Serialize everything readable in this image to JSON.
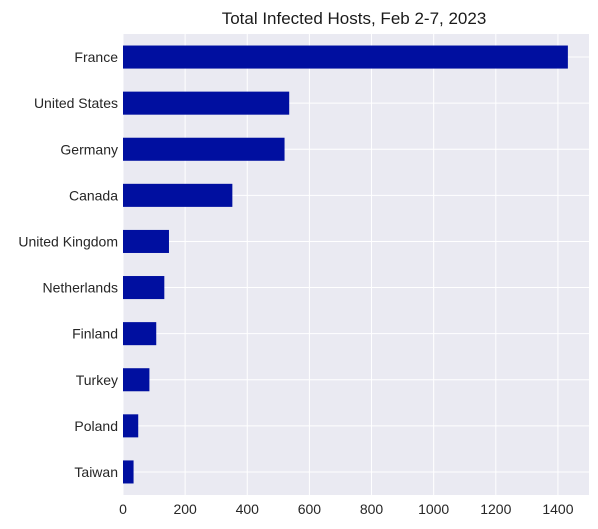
{
  "chart_data": {
    "type": "bar",
    "orientation": "horizontal",
    "title": "Total Infected Hosts, Feb 2-7, 2023",
    "xlabel": "",
    "ylabel": "",
    "categories": [
      "France",
      "United States",
      "Germany",
      "Canada",
      "United Kingdom",
      "Netherlands",
      "Finland",
      "Turkey",
      "Poland",
      "Taiwan"
    ],
    "values": [
      1432,
      535,
      520,
      352,
      148,
      133,
      107,
      85,
      49,
      34
    ],
    "xlim": [
      0,
      1500
    ],
    "xticks": [
      0,
      200,
      400,
      600,
      800,
      1000,
      1200,
      1400
    ],
    "grid": true,
    "legend": "none",
    "colors": {
      "bar": "#000fa0",
      "plot_background": "#eaeaf2",
      "grid": "#ffffff",
      "text": "#262626"
    }
  }
}
